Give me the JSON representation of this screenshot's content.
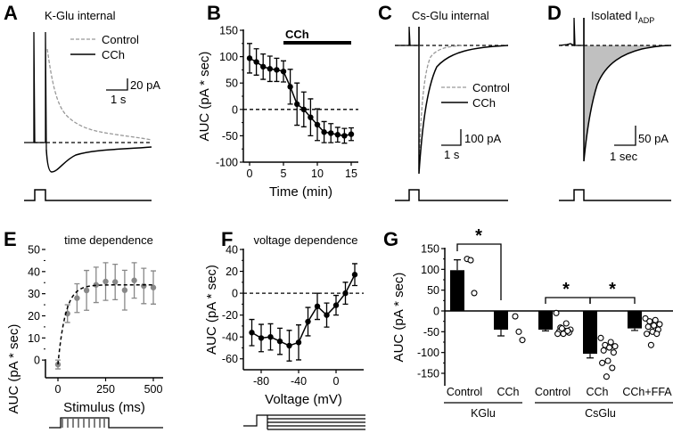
{
  "panels": {
    "A": {
      "letter": "A",
      "title": "K-Glu internal",
      "legend": [
        "Control",
        "CCh"
      ],
      "scale_y": "20 pA",
      "scale_x": "1 s"
    },
    "B": {
      "letter": "B"
    },
    "C": {
      "letter": "C",
      "title": "Cs-Glu internal",
      "legend": [
        "Control",
        "CCh"
      ],
      "scale_y": "100 pA",
      "scale_x": "1 s"
    },
    "D": {
      "letter": "D",
      "title_main": "Isolated I",
      "title_sub": "ADP",
      "scale_y": "50 pA",
      "scale_x": "1 sec"
    },
    "E": {
      "letter": "E"
    },
    "F": {
      "letter": "F"
    },
    "G": {
      "letter": "G"
    }
  },
  "colors": {
    "control": "#999999",
    "cch": "#000000",
    "fill": "#c0c0c0",
    "points_E": "#888888"
  },
  "chart_data": [
    {
      "id": "B",
      "type": "line",
      "xlabel": "Time (min)",
      "ylabel": "AUC (pA * sec)",
      "xlim": [
        0,
        15
      ],
      "ylim": [
        -100,
        150
      ],
      "xticks": [
        0,
        5,
        10,
        15
      ],
      "yticks": [
        150,
        100,
        50,
        0,
        -50,
        -100
      ],
      "annotation": {
        "label": "CCh",
        "from": 5,
        "to": 15
      },
      "x": [
        0,
        1,
        2,
        3,
        4,
        5,
        6,
        7,
        8,
        9,
        10,
        11,
        12,
        13,
        14,
        15
      ],
      "y": [
        97,
        90,
        81,
        77,
        75,
        72,
        43,
        10,
        0,
        -15,
        -29,
        -43,
        -45,
        -48,
        -50,
        -47
      ],
      "err": [
        28,
        25,
        24,
        24,
        22,
        20,
        33,
        40,
        33,
        35,
        30,
        20,
        18,
        14,
        14,
        12
      ]
    },
    {
      "id": "E",
      "type": "scatter",
      "title": "time dependence",
      "xlabel": "Stimulus (ms)",
      "ylabel": "AUC (pA * sec)",
      "xlim": [
        0,
        500
      ],
      "ylim": [
        -8,
        50
      ],
      "xticks": [
        0,
        250,
        500
      ],
      "yticks": [
        0,
        10,
        20,
        30,
        40,
        50
      ],
      "x": [
        0,
        50,
        100,
        150,
        200,
        250,
        300,
        350,
        400,
        450,
        500
      ],
      "y": [
        -2,
        21,
        28,
        31.5,
        34,
        35.5,
        35.3,
        31.6,
        36,
        33.5,
        32.8
      ],
      "err": [
        2,
        4,
        6.5,
        9,
        8,
        8.5,
        8,
        9,
        8,
        8,
        7.5
      ],
      "fit": {
        "type": "exponential",
        "y0": -2,
        "amplitude": 36,
        "tau_ms": 40
      }
    },
    {
      "id": "F",
      "type": "line",
      "title": "voltage dependence",
      "xlabel": "Voltage (mV)",
      "ylabel": "AUC (pA * sec)",
      "xlim": [
        -90,
        20
      ],
      "ylim": [
        -70,
        40
      ],
      "xticks": [
        -80,
        -40,
        0
      ],
      "yticks": [
        40,
        20,
        0,
        -20,
        -40,
        -60
      ],
      "x": [
        -90,
        -80,
        -70,
        -60,
        -50,
        -40,
        -30,
        -20,
        -10,
        0,
        10,
        20
      ],
      "y": [
        -36,
        -41,
        -40,
        -44,
        -48,
        -45,
        -26,
        -12,
        -20,
        -11,
        0,
        17
      ],
      "err": [
        12,
        12.5,
        12,
        12,
        14,
        16,
        13,
        12,
        11,
        9,
        10,
        10
      ]
    },
    {
      "id": "G",
      "type": "bar",
      "ylabel": "AUC (pA * sec)",
      "ylim": [
        -180,
        150
      ],
      "yticks": [
        150,
        100,
        50,
        0,
        -50,
        -100,
        -150
      ],
      "categories": [
        "Control",
        "CCh",
        "Control",
        "CCh",
        "CCh+FFA"
      ],
      "groups": [
        {
          "name": "KGlu",
          "members": [
            0,
            1
          ]
        },
        {
          "name": "CsGlu",
          "members": [
            2,
            3,
            4
          ]
        }
      ],
      "values": [
        98,
        -45,
        -45,
        -103,
        -42
      ],
      "err": [
        25,
        15,
        3,
        10,
        5
      ],
      "points": [
        [
          125,
          122,
          43
        ],
        [
          -13,
          -50,
          -70
        ],
        [
          -5,
          -30,
          -40,
          -45,
          -48,
          -50,
          -52,
          -55,
          -55,
          -48,
          -42
        ],
        [
          -65,
          -75,
          -82,
          -85,
          -88,
          -95,
          -100,
          -120,
          -125,
          -137,
          -158
        ],
        [
          -18,
          -22,
          -25,
          -32,
          -35,
          -38,
          -45,
          -50,
          -55,
          -55,
          -82
        ]
      ],
      "significance": [
        {
          "pair": [
            0,
            1
          ],
          "label": "*"
        },
        {
          "pair": [
            2,
            3
          ],
          "label": "*"
        },
        {
          "pair": [
            3,
            4
          ],
          "label": "*"
        }
      ]
    }
  ]
}
